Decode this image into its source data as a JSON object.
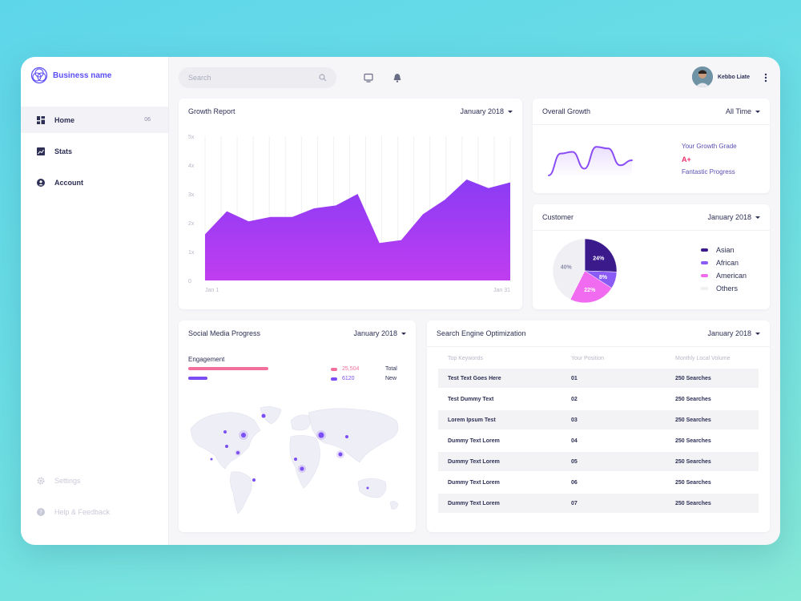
{
  "brand": {
    "name": "Business name"
  },
  "sidebar": {
    "items": [
      {
        "label": "Home",
        "badge": "06",
        "icon": "dashboard-icon"
      },
      {
        "label": "Stats",
        "icon": "chart-icon"
      },
      {
        "label": "Account",
        "icon": "user-icon"
      }
    ],
    "footer": [
      {
        "label": "Settings",
        "icon": "gear-icon"
      },
      {
        "label": "Help & Feedback",
        "icon": "help-icon"
      }
    ]
  },
  "topbar": {
    "search_placeholder": "Search",
    "user_name": "Kebbo Liate"
  },
  "growth_report": {
    "title": "Growth Report",
    "filter": "January 2018",
    "y_ticks": [
      "0",
      "1x",
      "2x",
      "3x",
      "4x",
      "5x"
    ],
    "x_start": "Jan 1",
    "x_end": "Jan 31"
  },
  "overall_growth": {
    "title": "Overall Growth",
    "filter": "All Time",
    "grade_label": "Your Growth Grade",
    "grade": "A+",
    "grade_note": "Fantastic Progress"
  },
  "customer": {
    "title": "Customer",
    "filter": "January 2018",
    "legend": [
      {
        "label": "Asian",
        "color": "#3b1a8c"
      },
      {
        "label": "African",
        "color": "#8a5cf5"
      },
      {
        "label": "American",
        "color": "#f06bf0"
      },
      {
        "label": "Others",
        "color": "#efeff4"
      }
    ]
  },
  "social": {
    "title": "Social Media Progress",
    "filter": "January 2018",
    "engagement_label": "Engagement",
    "stats": [
      {
        "value": "25,504",
        "label": "Total",
        "color": "#f36f9c"
      },
      {
        "value": "6120",
        "label": "New",
        "color": "#7b4df5"
      }
    ]
  },
  "seo": {
    "title": "Search Engine Optimization",
    "filter": "January 2018",
    "columns": [
      "Top Keywords",
      "Your Position",
      "Monthly Local Volume"
    ],
    "rows": [
      [
        "Test Text Goes Here",
        "01",
        "250 Searches"
      ],
      [
        "Test Dummy Text",
        "02",
        "250 Searches"
      ],
      [
        "Lorem Ipsum Test",
        "03",
        "250 Searches"
      ],
      [
        "Dummy Text Lorem",
        "04",
        "250 Searches"
      ],
      [
        "Dummy Text Lorem",
        "05",
        "250 Searches"
      ],
      [
        "Dummy Text Lorem",
        "06",
        "250 Searches"
      ],
      [
        "Dummy Text Lorem",
        "07",
        "250 Searches"
      ]
    ]
  },
  "chart_data": [
    {
      "type": "area",
      "title": "Growth Report",
      "x_labels_shown": [
        "Jan 1",
        "Jan 31"
      ],
      "y_ticks": [
        "0",
        "1x",
        "2x",
        "3x",
        "4x",
        "5x"
      ],
      "ylim": [
        0,
        5
      ],
      "values": [
        1.6,
        2.4,
        2.05,
        2.2,
        2.2,
        2.5,
        2.6,
        3.0,
        1.3,
        1.4,
        2.3,
        2.8,
        3.5,
        3.2,
        3.4
      ],
      "color": "#9b34f6"
    },
    {
      "type": "line",
      "title": "Overall Growth",
      "values": [
        0.05,
        0.7,
        0.75,
        0.25,
        0.9,
        0.85,
        0.35,
        0.5
      ],
      "color": "#8a4df5"
    },
    {
      "type": "pie",
      "title": "Customer",
      "slices": [
        {
          "label": "Asian",
          "value": 24,
          "display": "24%",
          "color": "#3b1a8c"
        },
        {
          "label": "African",
          "value": 8,
          "display": "8%",
          "color": "#8a5cf5"
        },
        {
          "label": "American",
          "value": 22,
          "display": "22%",
          "color": "#f06bf0"
        },
        {
          "label": "Others",
          "value": 40,
          "display": "40%",
          "color": "#efeff4"
        }
      ]
    },
    {
      "type": "bar",
      "title": "Engagement",
      "series": [
        {
          "value": 25504,
          "color": "#f36f9c"
        },
        {
          "value": 6120,
          "color": "#7b4df5"
        }
      ]
    }
  ]
}
